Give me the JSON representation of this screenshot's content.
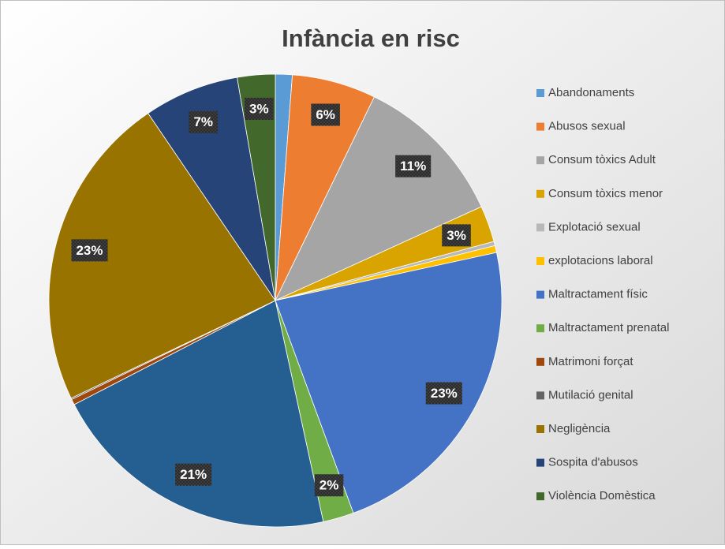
{
  "chart_data": {
    "type": "pie",
    "title": "Infància en risc",
    "categories": [
      "Abandonaments",
      "Abusos sexual",
      "Consum tòxics Adult",
      "Consum tòxics menor",
      "Explotació sexual",
      "explotacions laboral",
      "Maltractament físic",
      "Maltractament prenatal",
      null,
      "Matrimoni forçat",
      "Mutilació genital",
      "Negligència",
      "Sospita d'abusos",
      "Violència Domèstica"
    ],
    "values": [
      1.2,
      6,
      11,
      2.6,
      0.3,
      0.5,
      22.8,
      2.2,
      20.8,
      0.4,
      0.1,
      22.6,
      6.8,
      2.7
    ],
    "value_labels": [
      null,
      "6%",
      "11%",
      "3%",
      null,
      null,
      "23%",
      "2%",
      "21%",
      null,
      null,
      "23%",
      "7%",
      "3%"
    ],
    "colors": [
      "#5B9BD5",
      "#ED7D31",
      "#A5A5A5",
      "#D9A400",
      "#B8B8B8",
      "#FFC000",
      "#4472C4",
      "#70AD47",
      "#255E91",
      "#9E480E",
      "#636363",
      "#997300",
      "#264478",
      "#43682B"
    ],
    "legend": "right"
  }
}
